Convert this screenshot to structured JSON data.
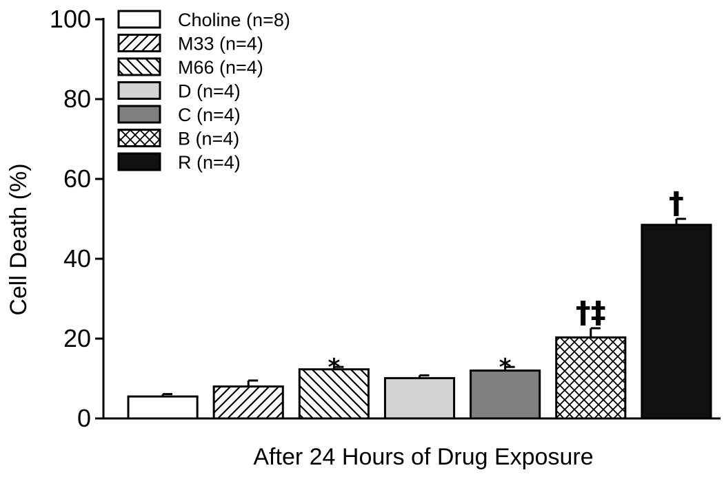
{
  "chart_data": {
    "type": "bar",
    "xlabel": "After 24 Hours of Drug Exposure",
    "ylabel": "Cell Death (%)",
    "ylim": [
      0,
      100
    ],
    "yticks": [
      0,
      20,
      40,
      60,
      80,
      100
    ],
    "legend_position": "top-left",
    "series": [
      {
        "name": "Choline (n=8)",
        "value": 5.5,
        "error": 0.6,
        "fill": "white",
        "annotation": ""
      },
      {
        "name": "M33 (n=4)",
        "value": 8.0,
        "error": 1.5,
        "fill": "hatch-forward",
        "annotation": ""
      },
      {
        "name": "M66 (n=4)",
        "value": 12.3,
        "error": 0.6,
        "fill": "hatch-back",
        "annotation": "*"
      },
      {
        "name": "D (n=4)",
        "value": 10.1,
        "error": 0.7,
        "fill": "#d3d3d3",
        "annotation": ""
      },
      {
        "name": "C (n=4)",
        "value": 12.0,
        "error": 0.9,
        "fill": "#808080",
        "annotation": "*"
      },
      {
        "name": "B (n=4)",
        "value": 20.3,
        "error": 2.3,
        "fill": "crosshatch",
        "annotation": "†‡"
      },
      {
        "name": "R (n=4)",
        "value": 48.5,
        "error": 1.5,
        "fill": "#111111",
        "annotation": "†"
      }
    ]
  }
}
